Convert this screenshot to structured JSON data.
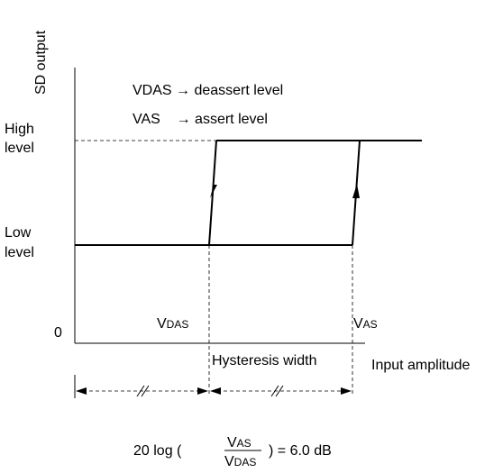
{
  "axes": {
    "y_label": "SD output",
    "x_label": "Input amplitude",
    "origin": "0"
  },
  "levels": {
    "high": [
      "High",
      "level"
    ],
    "low": [
      "Low",
      "level"
    ]
  },
  "legend": [
    "VDAS → deassert level",
    "VAS    → assert level"
  ],
  "markers": {
    "vdas": {
      "main": "V",
      "sub": "DAS"
    },
    "vas": {
      "main": "V",
      "sub": "AS"
    }
  },
  "hysteresis_width": "Hysteresis width",
  "formula": {
    "prefix": "20 log (",
    "numerator": {
      "main": "V",
      "sub": "AS"
    },
    "denominator": {
      "main": "V",
      "sub": "DAS"
    },
    "suffix": ") = 6.0 dB"
  }
}
